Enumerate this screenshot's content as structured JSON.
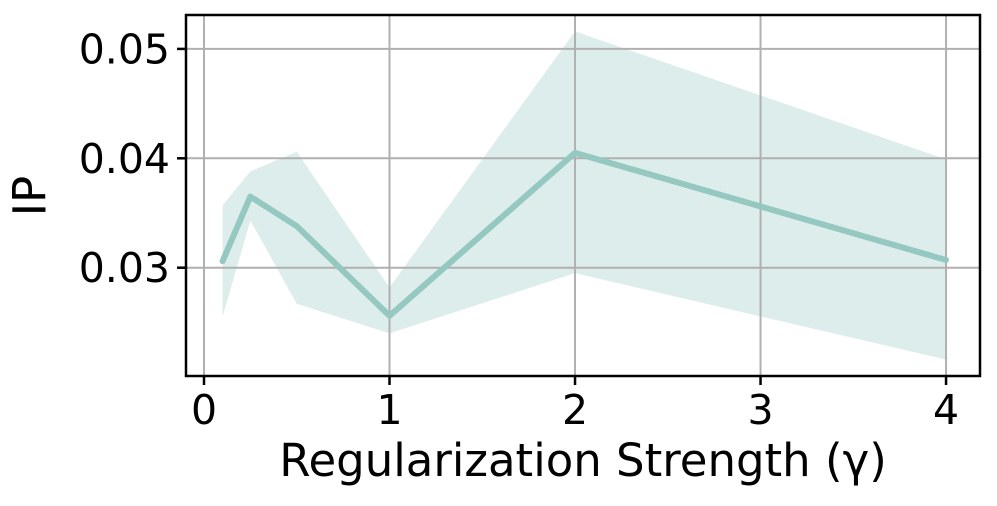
{
  "chart_data": {
    "type": "line",
    "title": "",
    "xlabel": "Regularization Strength (γ)",
    "ylabel": "IP",
    "x": [
      0.1,
      0.25,
      0.5,
      1,
      2,
      4
    ],
    "series": [
      {
        "name": "mean",
        "values": [
          0.0306,
          0.0365,
          0.0338,
          0.0256,
          0.0405,
          0.0307
        ]
      },
      {
        "name": "band_upper",
        "values": [
          0.0357,
          0.0388,
          0.0406,
          0.0282,
          0.0516,
          0.0399
        ]
      },
      {
        "name": "band_lower",
        "values": [
          0.0255,
          0.0343,
          0.0267,
          0.024,
          0.0295,
          0.0216
        ]
      }
    ],
    "xticks": [
      0,
      1,
      2,
      3,
      4
    ],
    "xtick_labels": [
      "0",
      "1",
      "2",
      "3",
      "4"
    ],
    "yticks": [
      0.03,
      0.04,
      0.05
    ],
    "ytick_labels": [
      "0.03",
      "0.04",
      "0.05"
    ],
    "xlim": [
      -0.097,
      4.183
    ],
    "ylim": [
      0.0201,
      0.0531
    ],
    "grid": true,
    "legend": false,
    "colors": {
      "line": "#94c8c0",
      "band": "rgba(148,200,192,0.32)",
      "grid": "#b0b0b0",
      "spine": "#000000",
      "text": "#000000"
    }
  }
}
